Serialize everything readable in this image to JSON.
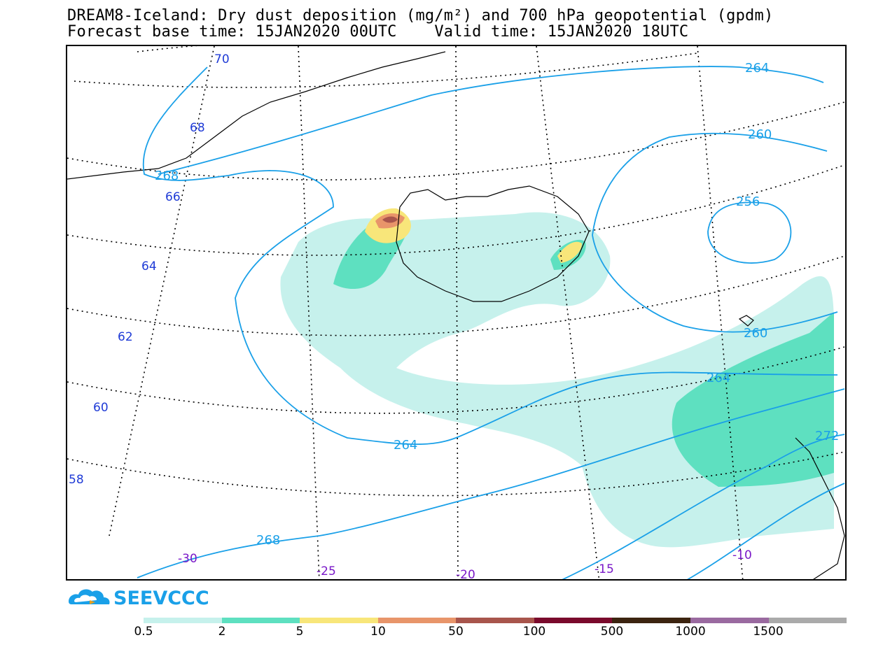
{
  "title": {
    "line1": "DREAM8-Iceland: Dry dust deposition (mg/m²) and 700 hPa geopotential (gpdm)",
    "line2": "Forecast base time: 15JAN2020 00UTC    Valid time: 15JAN2020 18UTC"
  },
  "brand": {
    "name": "SEEVCCC",
    "logo_icon": "cloud-logo-icon",
    "color": "#1aa0e8"
  },
  "latitude_labels": [
    "70",
    "68",
    "66",
    "64",
    "62",
    "60",
    "58"
  ],
  "longitude_labels": [
    "-30",
    "-25",
    "-20",
    "-15",
    "-10"
  ],
  "contour_labels": [
    "264",
    "260",
    "256",
    "268",
    "260",
    "264",
    "264",
    "268",
    "272"
  ],
  "legend": {
    "colors": [
      "#c6f1ec",
      "#5ee0c0",
      "#f8e67a",
      "#e8956a",
      "#a8554c",
      "#7a0a2c",
      "#3c2410",
      "#9a6aa0",
      "#aaaaaa"
    ],
    "ticks": [
      "0.5",
      "2",
      "5",
      "10",
      "50",
      "100",
      "500",
      "1000",
      "1500"
    ]
  },
  "colors": {
    "contour": "#1aa0e8",
    "latitude_label": "#1f3bd6",
    "longitude_label": "#7a18c8",
    "coast": "#000000"
  }
}
